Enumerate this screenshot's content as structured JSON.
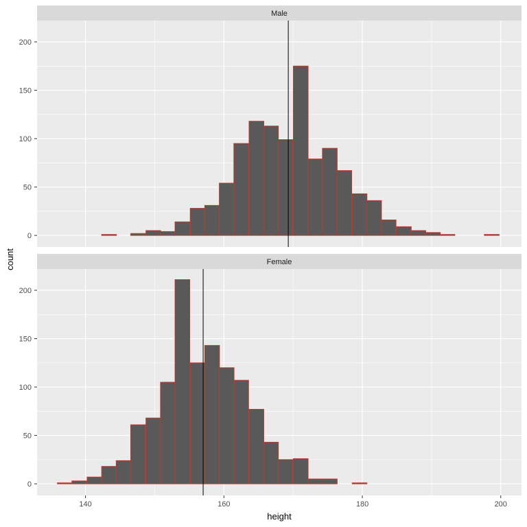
{
  "chart_data": {
    "type": "bar",
    "chart_kind": "faceted histogram",
    "xlabel": "height",
    "ylabel": "count",
    "xlim": [
      133,
      203
    ],
    "ylim": [
      -12,
      222
    ],
    "x_ticks": [
      140,
      160,
      180,
      200
    ],
    "y_ticks": [
      0,
      50,
      100,
      150,
      200
    ],
    "grid": true,
    "bin_width": 2.13,
    "colors": {
      "bar_fill": "#595959",
      "bar_outline": "#c0392b",
      "panel_bg": "#ebebeb",
      "strip_bg": "#d9d9d9",
      "vline": "#000000"
    },
    "facets": [
      {
        "name": "Male",
        "vline": 169.3,
        "bins": [
          {
            "x": 137.0,
            "count": 0
          },
          {
            "x": 139.1,
            "count": 0
          },
          {
            "x": 141.3,
            "count": 0
          },
          {
            "x": 143.4,
            "count": 1
          },
          {
            "x": 145.5,
            "count": 0
          },
          {
            "x": 147.6,
            "count": 2
          },
          {
            "x": 149.8,
            "count": 5
          },
          {
            "x": 151.9,
            "count": 4
          },
          {
            "x": 154.0,
            "count": 14
          },
          {
            "x": 156.2,
            "count": 28
          },
          {
            "x": 158.3,
            "count": 31
          },
          {
            "x": 160.4,
            "count": 54
          },
          {
            "x": 162.5,
            "count": 95
          },
          {
            "x": 164.7,
            "count": 118
          },
          {
            "x": 166.8,
            "count": 113
          },
          {
            "x": 168.9,
            "count": 99
          },
          {
            "x": 171.1,
            "count": 175
          },
          {
            "x": 173.2,
            "count": 79
          },
          {
            "x": 175.3,
            "count": 90
          },
          {
            "x": 177.4,
            "count": 67
          },
          {
            "x": 179.6,
            "count": 43
          },
          {
            "x": 181.7,
            "count": 36
          },
          {
            "x": 183.8,
            "count": 16
          },
          {
            "x": 186.0,
            "count": 9
          },
          {
            "x": 188.1,
            "count": 5
          },
          {
            "x": 190.2,
            "count": 3
          },
          {
            "x": 192.3,
            "count": 1
          },
          {
            "x": 194.5,
            "count": 0
          },
          {
            "x": 196.6,
            "count": 0
          },
          {
            "x": 198.7,
            "count": 1
          }
        ]
      },
      {
        "name": "Female",
        "vline": 157.0,
        "bins": [
          {
            "x": 137.0,
            "count": 1
          },
          {
            "x": 139.1,
            "count": 3
          },
          {
            "x": 141.3,
            "count": 7
          },
          {
            "x": 143.4,
            "count": 18
          },
          {
            "x": 145.5,
            "count": 24
          },
          {
            "x": 147.6,
            "count": 61
          },
          {
            "x": 149.8,
            "count": 68
          },
          {
            "x": 151.9,
            "count": 105
          },
          {
            "x": 154.0,
            "count": 211
          },
          {
            "x": 156.2,
            "count": 125
          },
          {
            "x": 158.3,
            "count": 143
          },
          {
            "x": 160.4,
            "count": 120
          },
          {
            "x": 162.5,
            "count": 107
          },
          {
            "x": 164.7,
            "count": 77
          },
          {
            "x": 166.8,
            "count": 43
          },
          {
            "x": 168.9,
            "count": 25
          },
          {
            "x": 171.1,
            "count": 26
          },
          {
            "x": 173.2,
            "count": 5
          },
          {
            "x": 175.3,
            "count": 5
          },
          {
            "x": 177.4,
            "count": 0
          },
          {
            "x": 179.6,
            "count": 1
          },
          {
            "x": 181.7,
            "count": 0
          },
          {
            "x": 183.8,
            "count": 0
          },
          {
            "x": 186.0,
            "count": 0
          },
          {
            "x": 188.1,
            "count": 0
          },
          {
            "x": 190.2,
            "count": 0
          },
          {
            "x": 192.3,
            "count": 0
          },
          {
            "x": 194.5,
            "count": 0
          },
          {
            "x": 196.6,
            "count": 0
          },
          {
            "x": 198.7,
            "count": 0
          }
        ]
      }
    ]
  }
}
